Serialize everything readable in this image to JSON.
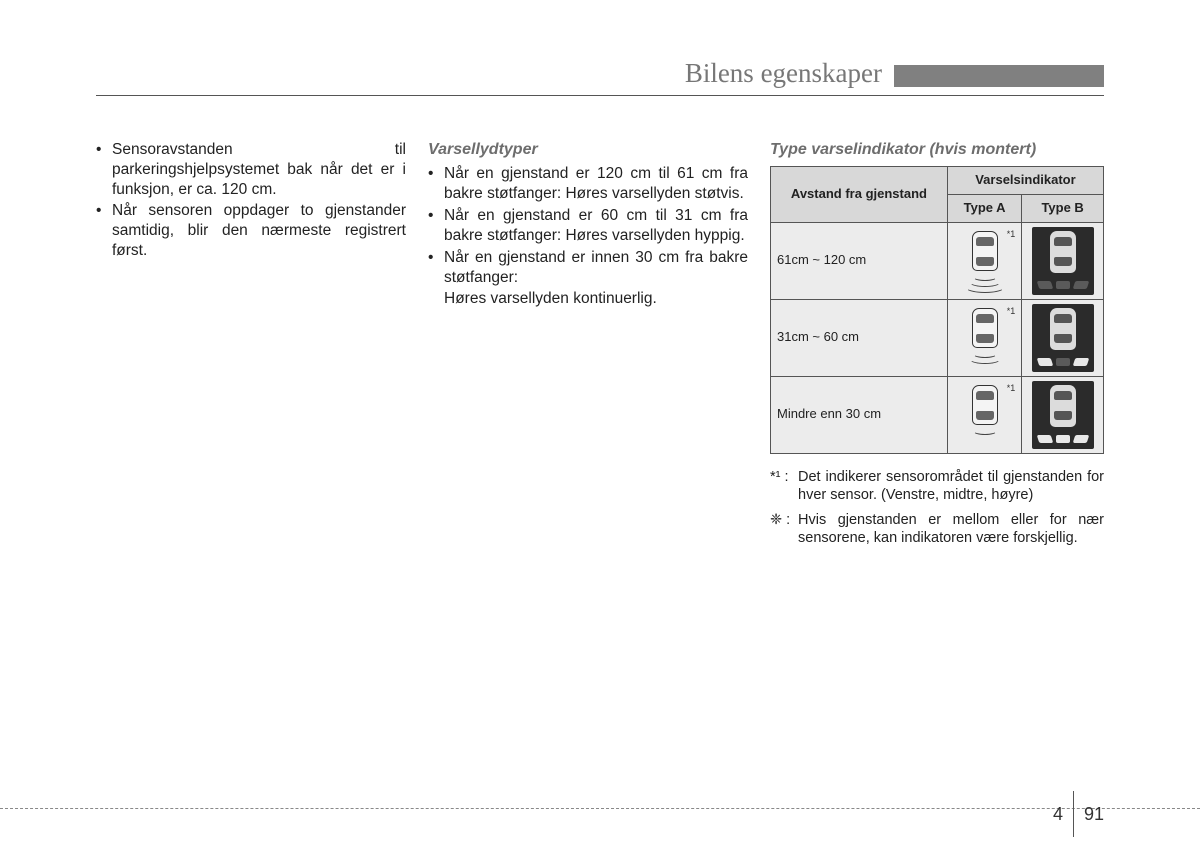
{
  "header": {
    "title": "Bilens egenskaper"
  },
  "col1": {
    "items": [
      "Sensoravstanden til parkeringshjelpsystemet bak når det er i funksjon, er ca. 120 cm.",
      "Når sensoren oppdager to gjenstander samtidig, blir den nærmeste registrert først."
    ]
  },
  "col2": {
    "heading": "Varsellydtyper",
    "items": [
      "Når en gjenstand er 120 cm til 61 cm fra bakre støtfanger: Høres varsellyden støtvis.",
      "Når en gjenstand er 60 cm til 31 cm fra bakre støtfanger: Høres varsellyden hyppig.",
      "Når en gjenstand er innen 30 cm fra bakre støtfanger:"
    ],
    "trailing": "Høres varsellyden kontinuerlig."
  },
  "col3": {
    "heading": "Type varselindikator (hvis montert)",
    "table": {
      "col_distance": "Avstand fra gjenstand",
      "col_indicator": "Varselsindikator",
      "col_typeA": "Type A",
      "col_typeB": "Type B",
      "rows": [
        {
          "distance": "61cm ~ 120 cm",
          "a_arcs": 3,
          "b_bars_lit": 0
        },
        {
          "distance": "31cm ~ 60 cm",
          "a_arcs": 2,
          "b_bars_lit": 2
        },
        {
          "distance": "Mindre enn 30 cm",
          "a_arcs": 1,
          "b_bars_lit": 3
        }
      ],
      "star_label": "*1"
    },
    "footnotes": [
      {
        "mark": "*¹ :",
        "text": "Det indikerer sensorområdet til gjenstanden for hver sensor. (Venstre, midtre, høyre)"
      },
      {
        "mark": "❈ :",
        "text": "Hvis gjenstanden er mellom eller for nær sensorene, kan indikatoren være forskjellig."
      }
    ]
  },
  "footer": {
    "chapter": "4",
    "page": "91"
  },
  "colors": {
    "header_grey": "#808080",
    "title_grey": "#777777",
    "rule": "#555555",
    "table_header_bg": "#d8d8d8",
    "table_cell_bg": "#ececec",
    "carB_bg": "#2b2b2b"
  }
}
